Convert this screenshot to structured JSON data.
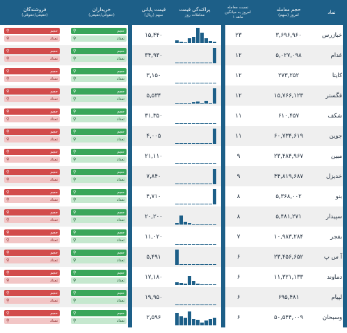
{
  "headers": {
    "symbol": "نماد",
    "volume": "حجم معامله",
    "volume_sub": "امروز (سهم)",
    "ratio": "نسبت معامله",
    "ratio_sub1": "امروز به میانگین",
    "ratio_sub2": "۱ ماهه",
    "dispersion": "پراکندگی قیمت",
    "dispersion_sub": "معاملات روز",
    "price": "قیمت پایانی",
    "price_sub": "سهم (ریال)",
    "buyers": "خریداران",
    "buyers_sub": "(حقوقی/حقیقی)",
    "sellers": "فروشندگان",
    "sellers_sub": "(حقیقی/حقوقی)"
  },
  "labels": {
    "count": "تعداد",
    "volume": "حجم"
  },
  "rows": [
    {
      "symbol": "خبازرس",
      "volume": "۳,۶۹۶,۹۶۰",
      "ratio": "۲۳",
      "price": "۱۵,۴۴۰",
      "bars": [
        0.2,
        0.1,
        0.05,
        0.3,
        0.4,
        1.0,
        0.7,
        0.3,
        0.15,
        0.1
      ]
    },
    {
      "symbol": "غدام",
      "volume": "۵,۰۲۷,۰۹۸",
      "ratio": "۱۲",
      "price": "۳۴,۹۳۰",
      "bars": [
        0.05,
        0.05,
        0.05,
        0.05,
        0.05,
        0.05,
        0.05,
        0.05,
        0.05,
        1.0
      ]
    },
    {
      "symbol": "کایتا",
      "volume": "۲۷۳,۲۵۲",
      "ratio": "۱۲",
      "price": "۳,۱۵۰",
      "bars": [
        0.05,
        0.05,
        0.05,
        0.05,
        0.05,
        0.05,
        0.05,
        0.05,
        0.05,
        0.05
      ]
    },
    {
      "symbol": "فگستر",
      "volume": "۱۵,۷۶۶,۱۲۳",
      "ratio": "۱۲",
      "price": "۵,۵۳۴",
      "bars": [
        0.05,
        0.05,
        0.05,
        0.05,
        0.1,
        0.15,
        0.05,
        0.2,
        0.05,
        1.0
      ]
    },
    {
      "symbol": "شکف",
      "volume": "۶۱۰,۴۵۷",
      "ratio": "۱۱",
      "price": "۳۱,۳۵۰",
      "bars": [
        0.05,
        0.05,
        0.05,
        0.05,
        0.05,
        0.05,
        0.05,
        0.05,
        0.05,
        0.05
      ]
    },
    {
      "symbol": "جوین",
      "volume": "۶۰,۷۳۴,۶۱۹",
      "ratio": "۱۱",
      "price": "۴,۰۰۵",
      "bars": [
        0.05,
        0.05,
        0.05,
        0.05,
        0.05,
        0.05,
        0.05,
        0.05,
        0.05,
        1.0
      ]
    },
    {
      "symbol": "مبین",
      "volume": "۲۳,۴۸۴,۹۶۷",
      "ratio": "۹",
      "price": "۲۱,۱۱۰",
      "bars": [
        0.05,
        0.05,
        0.05,
        0.05,
        0.05,
        0.05,
        0.05,
        0.05,
        0.05,
        0.05
      ]
    },
    {
      "symbol": "خدیزل",
      "volume": "۴۴,۸۱۹,۶۸۷",
      "ratio": "۹",
      "price": "۷,۸۴۰",
      "bars": [
        0.05,
        0.05,
        0.05,
        0.05,
        0.05,
        0.05,
        0.05,
        0.05,
        0.05,
        1.0
      ]
    },
    {
      "symbol": "بنو",
      "volume": "۵,۳۶۸,۰۰۲",
      "ratio": "۸",
      "price": "۴,۷۱۰",
      "bars": [
        0.05,
        0.05,
        0.05,
        0.05,
        0.05,
        0.05,
        0.05,
        0.05,
        0.05,
        1.0
      ]
    },
    {
      "symbol": "سپیدار",
      "volume": "۵,۴۸۱,۲۷۱",
      "ratio": "۸",
      "price": "۲۰,۲۰۰",
      "bars": [
        0.1,
        0.6,
        0.2,
        0.1,
        0.05,
        0.05,
        0.05,
        0.05,
        0.05,
        0.05
      ]
    },
    {
      "symbol": "بفجر",
      "volume": "۱۰,۹۸۳,۲۸۴",
      "ratio": "۷",
      "price": "۱۱,۰۲۰",
      "bars": [
        0.05,
        0.05,
        0.05,
        0.05,
        0.05,
        0.05,
        0.05,
        0.05,
        0.05,
        0.05
      ]
    },
    {
      "symbol": "آ س پ",
      "volume": "۲۳,۴۵۶,۶۵۲",
      "ratio": "۶",
      "price": "۵,۴۹۱",
      "bars": [
        1.0,
        0.05,
        0.05,
        0.05,
        0.05,
        0.05,
        0.05,
        0.05,
        0.05,
        0.05
      ]
    },
    {
      "symbol": "دماوند",
      "volume": "۱۱,۳۲۱,۱۳۳",
      "ratio": "۶",
      "price": "۱۷,۱۸۰",
      "bars": [
        0.2,
        0.15,
        0.1,
        0.6,
        0.25,
        0.1,
        0.05,
        0.05,
        0.05,
        0.05
      ]
    },
    {
      "symbol": "لپیام",
      "volume": "۶۹۵,۴۸۱",
      "ratio": "۶",
      "price": "۱۹,۹۵۰",
      "bars": [
        0.05,
        0.05,
        0.05,
        0.05,
        0.05,
        0.05,
        0.05,
        0.05,
        0.05,
        0.05
      ]
    },
    {
      "symbol": "وسبحان",
      "volume": "۵۰,۵۴۴,۰۰۹",
      "ratio": "۶",
      "price": "۲,۵۹۶",
      "bars": [
        0.8,
        0.6,
        0.5,
        0.9,
        0.4,
        0.35,
        0.2,
        0.3,
        0.4,
        0.5
      ]
    }
  ]
}
